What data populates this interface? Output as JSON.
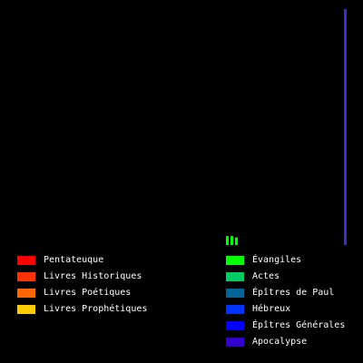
{
  "chart_data": {
    "type": "bar",
    "title": "",
    "xlabel": "",
    "ylabel": "",
    "grid": false,
    "legend": "bottom",
    "groups": [
      {
        "name": "Pentateuque",
        "color": "#ff0000",
        "values": []
      },
      {
        "name": "Livres Historiques",
        "color": "#ff3300",
        "values": []
      },
      {
        "name": "Livres Poétiques",
        "color": "#ff6600",
        "values": []
      },
      {
        "name": "Livres Prophétiques",
        "color": "#ffcc00",
        "values": []
      },
      {
        "name": "Évangiles",
        "color": "#00ff00",
        "values": [
          28,
          28,
          24
        ]
      },
      {
        "name": "Actes",
        "color": "#00cc66",
        "values": []
      },
      {
        "name": "Épîtres de Paul",
        "color": "#006699",
        "values": []
      },
      {
        "name": "Hébreux",
        "color": "#0033ff",
        "values": []
      },
      {
        "name": "Épîtres Générales",
        "color": "#0000ff",
        "values": []
      },
      {
        "name": "Apocalypse",
        "color": "#3300cc",
        "values": []
      }
    ],
    "outlier": {
      "color": "#3333cc",
      "value": 740
    },
    "ylim": [
      0,
      740
    ]
  }
}
